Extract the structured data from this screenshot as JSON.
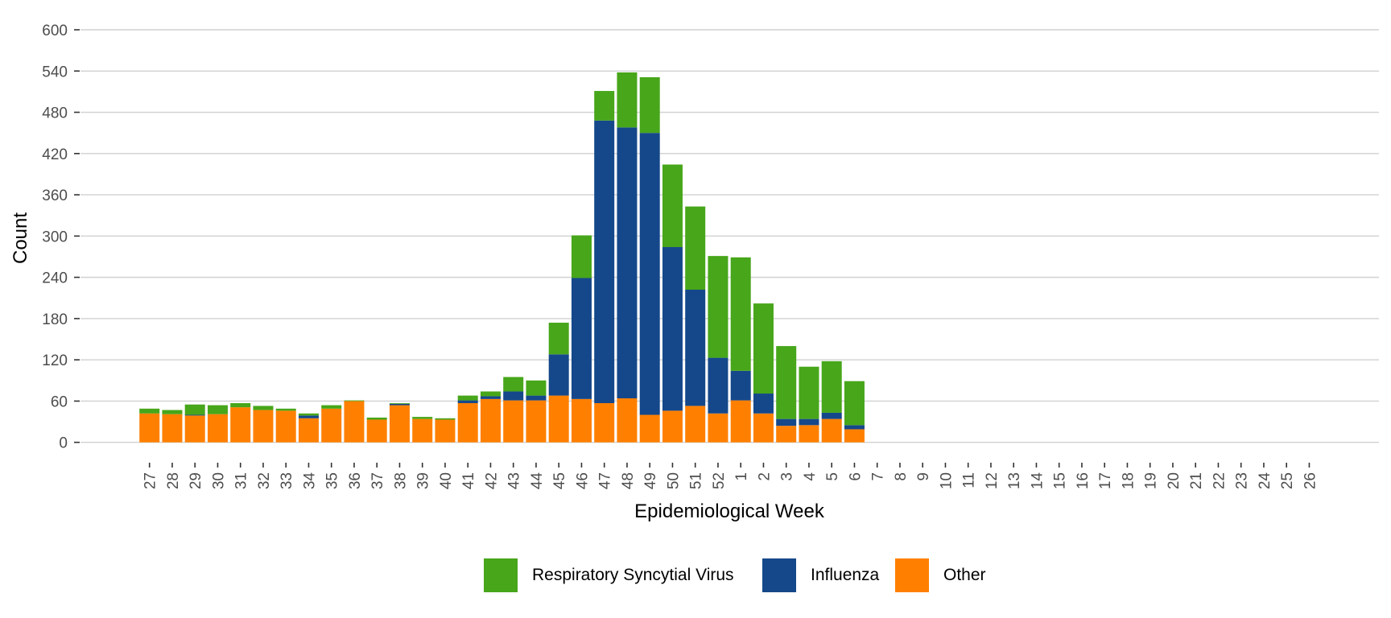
{
  "chart_data": {
    "type": "bar",
    "stacked": true,
    "title": "",
    "xlabel": "Epidemiological Week",
    "ylabel": "Count",
    "ylim": [
      0,
      600
    ],
    "yticks": [
      0,
      60,
      120,
      180,
      240,
      300,
      360,
      420,
      480,
      540,
      600
    ],
    "grid": "horizontal",
    "legend_position": "bottom",
    "categories": [
      "27",
      "28",
      "29",
      "30",
      "31",
      "32",
      "33",
      "34",
      "35",
      "36",
      "37",
      "38",
      "39",
      "40",
      "41",
      "42",
      "43",
      "44",
      "45",
      "46",
      "47",
      "48",
      "49",
      "50",
      "51",
      "52",
      "1",
      "2",
      "3",
      "4",
      "5",
      "6",
      "7",
      "8",
      "9",
      "10",
      "11",
      "12",
      "13",
      "14",
      "15",
      "16",
      "17",
      "18",
      "19",
      "20",
      "21",
      "22",
      "23",
      "24",
      "25",
      "26"
    ],
    "series": [
      {
        "name": "Other",
        "color": "#FF8000",
        "values": [
          42,
          41,
          39,
          41,
          51,
          47,
          46,
          35,
          49,
          60,
          33,
          54,
          34,
          33,
          57,
          63,
          61,
          61,
          68,
          63,
          57,
          64,
          40,
          46,
          53,
          42,
          61,
          42,
          24,
          25,
          34,
          19,
          null,
          null,
          null,
          null,
          null,
          null,
          null,
          null,
          null,
          null,
          null,
          null,
          null,
          null,
          null,
          null,
          null,
          null,
          null,
          null
        ]
      },
      {
        "name": "Influenza",
        "color": "#15488A",
        "values": [
          0,
          0,
          1,
          0,
          0,
          0,
          0,
          4,
          0,
          0,
          0,
          2,
          0,
          0,
          4,
          4,
          13,
          7,
          60,
          176,
          411,
          394,
          410,
          238,
          169,
          81,
          43,
          29,
          10,
          9,
          9,
          6,
          null,
          null,
          null,
          null,
          null,
          null,
          null,
          null,
          null,
          null,
          null,
          null,
          null,
          null,
          null,
          null,
          null,
          null,
          null,
          null
        ]
      },
      {
        "name": "Respiratory Syncytial Virus",
        "color": "#47A61A",
        "values": [
          7,
          6,
          15,
          13,
          6,
          6,
          3,
          3,
          5,
          1,
          3,
          1,
          3,
          2,
          7,
          7,
          21,
          22,
          46,
          62,
          43,
          80,
          81,
          120,
          121,
          148,
          165,
          131,
          106,
          76,
          75,
          64,
          null,
          null,
          null,
          null,
          null,
          null,
          null,
          null,
          null,
          null,
          null,
          null,
          null,
          null,
          null,
          null,
          null,
          null,
          null,
          null
        ]
      }
    ],
    "legend": [
      {
        "label": "Respiratory Syncytial Virus",
        "color": "#47A61A"
      },
      {
        "label": "Influenza",
        "color": "#15488A"
      },
      {
        "label": "Other",
        "color": "#FF8000"
      }
    ]
  }
}
